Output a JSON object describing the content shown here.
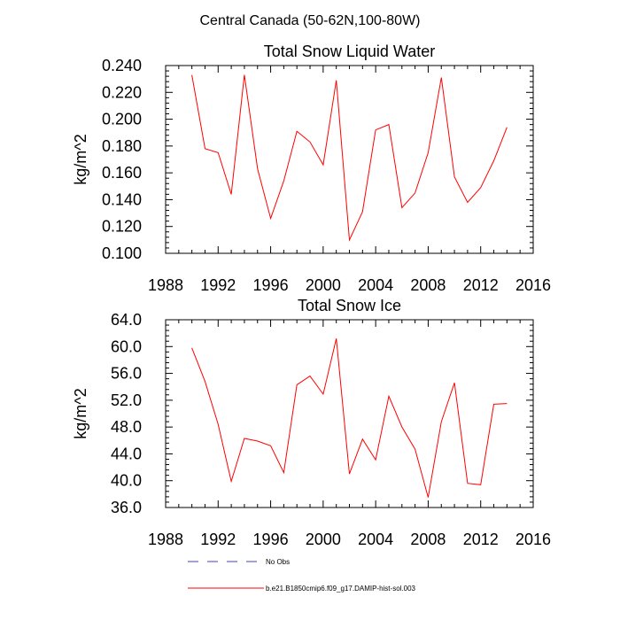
{
  "figure": {
    "title": "Central Canada (50-62N,100-80W)"
  },
  "legend": {
    "no_obs_label": "No Obs",
    "no_obs_color": "#4040c0",
    "model_label": "b.e21.B1850cmip6.f09_g17.DAMIP-hist-sol.003",
    "model_color": "#ff0000"
  },
  "chart_data": [
    {
      "type": "line",
      "title": "Total Snow Liquid Water",
      "xlabel": "",
      "ylabel": "kg/m^2",
      "xlim": [
        1988,
        2016
      ],
      "ylim": [
        0.1,
        0.24
      ],
      "x_ticks": [
        1988,
        1992,
        1996,
        2000,
        2004,
        2008,
        2012,
        2016
      ],
      "y_ticks": [
        "0.100",
        "0.120",
        "0.140",
        "0.160",
        "0.180",
        "0.200",
        "0.220",
        "0.240"
      ],
      "y_tick_values": [
        0.1,
        0.12,
        0.14,
        0.16,
        0.18,
        0.2,
        0.22,
        0.24
      ],
      "grid": false,
      "series": [
        {
          "color": "#ff0000",
          "x": [
            1990,
            1991,
            1992,
            1993,
            1994,
            1995,
            1996,
            1997,
            1998,
            1999,
            2000,
            2001,
            2002,
            2003,
            2004,
            2005,
            2006,
            2007,
            2008,
            2009,
            2010,
            2011,
            2012,
            2013,
            2014
          ],
          "values": [
            0.233,
            0.178,
            0.175,
            0.144,
            0.233,
            0.163,
            0.126,
            0.154,
            0.191,
            0.183,
            0.166,
            0.229,
            0.11,
            0.131,
            0.192,
            0.196,
            0.134,
            0.145,
            0.175,
            0.231,
            0.157,
            0.138,
            0.149,
            0.169,
            0.194
          ]
        }
      ]
    },
    {
      "type": "line",
      "title": "Total Snow Ice",
      "xlabel": "",
      "ylabel": "kg/m^2",
      "xlim": [
        1988,
        2016
      ],
      "ylim": [
        36,
        64
      ],
      "x_ticks": [
        1988,
        1992,
        1996,
        2000,
        2004,
        2008,
        2012,
        2016
      ],
      "y_ticks": [
        "36.0",
        "40.0",
        "44.0",
        "48.0",
        "52.0",
        "56.0",
        "60.0",
        "64.0"
      ],
      "y_tick_values": [
        36,
        40,
        44,
        48,
        52,
        56,
        60,
        64
      ],
      "grid": false,
      "series": [
        {
          "color": "#ff0000",
          "x": [
            1990,
            1991,
            1992,
            1993,
            1994,
            1995,
            1996,
            1997,
            1998,
            1999,
            2000,
            2001,
            2002,
            2003,
            2004,
            2005,
            2006,
            2007,
            2008,
            2009,
            2010,
            2011,
            2012,
            2013,
            2014
          ],
          "values": [
            59.8,
            54.8,
            48.4,
            39.9,
            46.3,
            45.9,
            45.2,
            41.2,
            54.3,
            55.6,
            52.9,
            61.2,
            41.0,
            46.2,
            43.1,
            52.6,
            48.0,
            44.7,
            37.5,
            48.8,
            54.6,
            39.6,
            39.4,
            51.4,
            51.5
          ]
        }
      ]
    }
  ]
}
